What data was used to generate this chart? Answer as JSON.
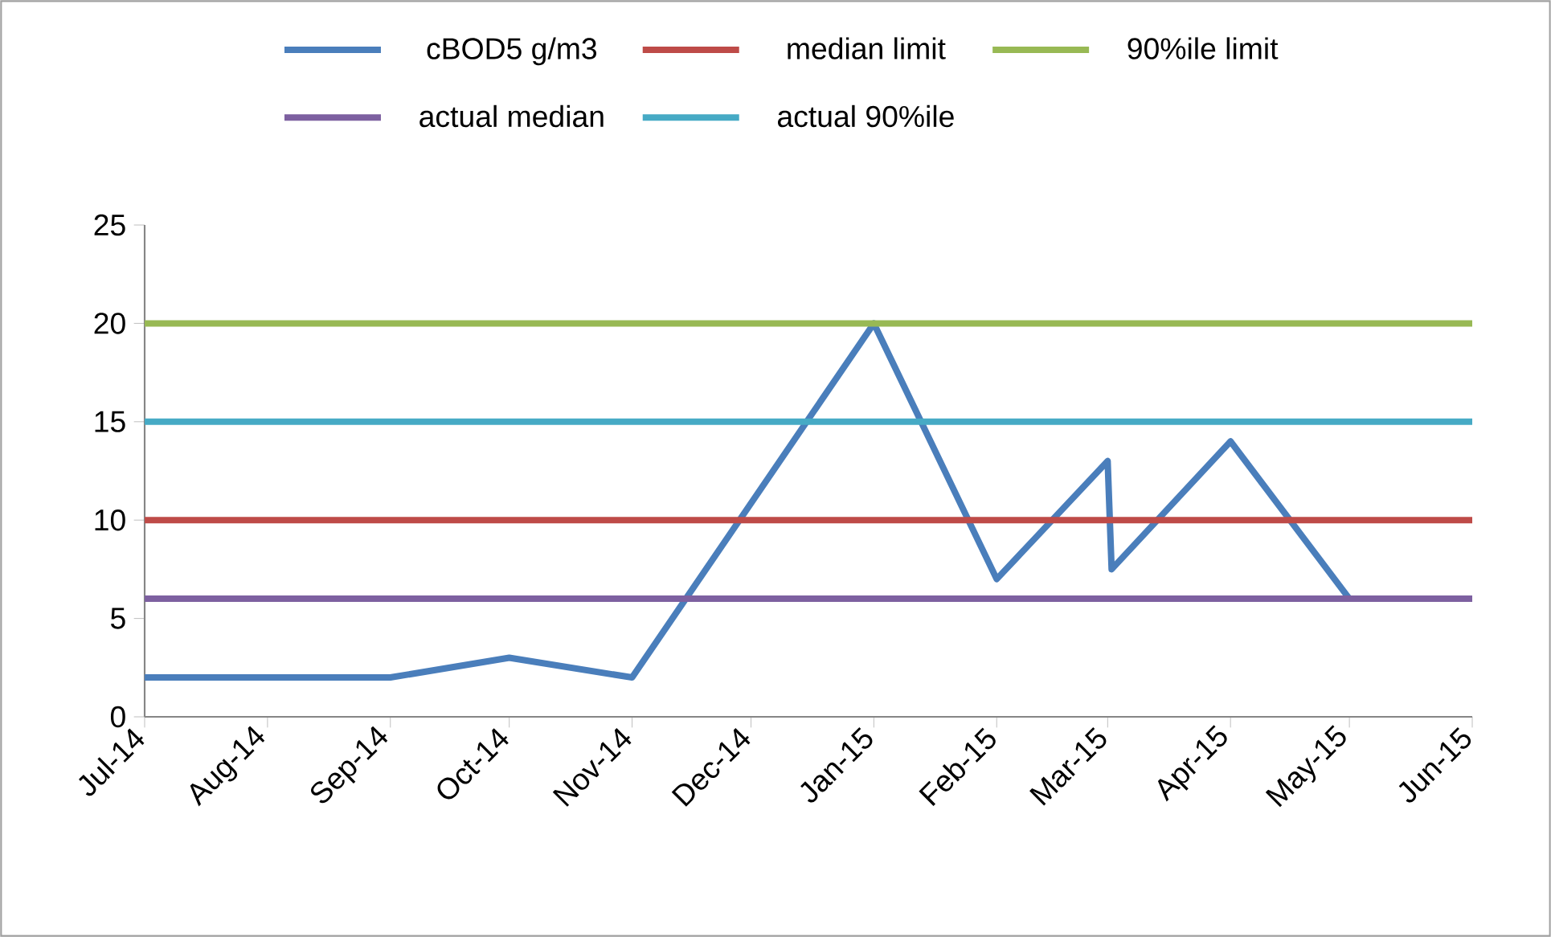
{
  "chart_data": {
    "type": "line",
    "x": [
      "2014-07-01",
      "2014-09-01",
      "2014-10-01",
      "2014-11-01",
      "2015-01-01",
      "2015-02-01",
      "2015-03-01",
      "2015-03-02",
      "2015-04-01",
      "2015-05-01",
      "2015-05-16"
    ],
    "series": [
      {
        "name": "cBOD5 g/m3",
        "color": "#4a7ebb",
        "values": [
          2,
          2,
          3,
          2,
          20,
          7,
          13,
          7.5,
          14,
          6,
          6
        ]
      },
      {
        "name": "median limit",
        "color": "#be4b48",
        "x": [
          "2014-07-01",
          "2015-06-01"
        ],
        "values": [
          10,
          10
        ]
      },
      {
        "name": "90%ile limit",
        "color": "#98b954",
        "x": [
          "2014-07-01",
          "2015-06-01"
        ],
        "values": [
          20,
          20
        ]
      },
      {
        "name": "actual median",
        "color": "#7d60a0",
        "x": [
          "2014-07-01",
          "2015-06-01"
        ],
        "values": [
          6,
          6
        ]
      },
      {
        "name": "actual 90%ile",
        "color": "#46aac5",
        "x": [
          "2014-07-01",
          "2015-06-01"
        ],
        "values": [
          15,
          15
        ]
      }
    ],
    "xlim": [
      "2014-07-01",
      "2015-06-01"
    ],
    "xticks": [
      {
        "value": "2014-07-01",
        "label": "Jul-14"
      },
      {
        "value": "2014-08-01",
        "label": "Aug-14"
      },
      {
        "value": "2014-09-01",
        "label": "Sep-14"
      },
      {
        "value": "2014-10-01",
        "label": "Oct-14"
      },
      {
        "value": "2014-11-01",
        "label": "Nov-14"
      },
      {
        "value": "2014-12-01",
        "label": "Dec-14"
      },
      {
        "value": "2015-01-01",
        "label": "Jan-15"
      },
      {
        "value": "2015-02-01",
        "label": "Feb-15"
      },
      {
        "value": "2015-03-01",
        "label": "Mar-15"
      },
      {
        "value": "2015-04-01",
        "label": "Apr-15"
      },
      {
        "value": "2015-05-01",
        "label": "May-15"
      },
      {
        "value": "2015-06-01",
        "label": "Jun-15"
      }
    ],
    "ylim": [
      0,
      25
    ],
    "yticks": [
      0,
      5,
      10,
      15,
      20,
      25
    ],
    "legend": "top",
    "marker": "none",
    "grid": false
  }
}
